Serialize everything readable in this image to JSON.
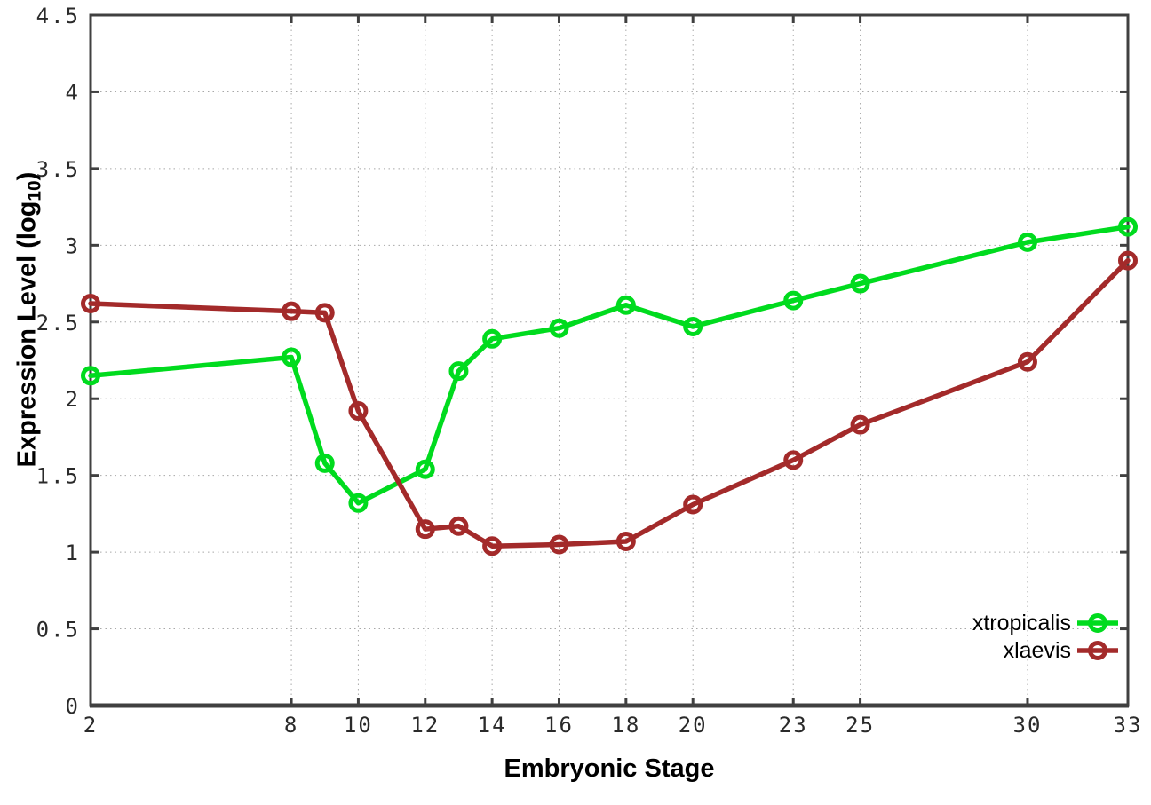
{
  "chart_data": {
    "type": "line",
    "title": "",
    "xlabel": "Embryonic Stage",
    "ylabel": "Expression Level (log10)",
    "ylabel_parts": {
      "pre": "Expression Level (log",
      "sub": "10",
      "post": ")"
    },
    "xlim": [
      2,
      33
    ],
    "ylim": [
      0,
      4.5
    ],
    "x_ticks": [
      2,
      8,
      10,
      12,
      14,
      16,
      18,
      20,
      23,
      25,
      30,
      33
    ],
    "y_ticks": [
      0,
      0.5,
      1,
      1.5,
      2,
      2.5,
      3,
      3.5,
      4,
      4.5
    ],
    "grid": true,
    "legend_position": "inside-bottom-right",
    "marker_shape": "open-circle",
    "x": [
      2,
      8,
      9,
      10,
      12,
      13,
      14,
      16,
      18,
      20,
      23,
      25,
      30,
      33
    ],
    "series": [
      {
        "name": "xtropicalis",
        "color": "#00db1e",
        "values": [
          2.15,
          2.27,
          1.58,
          1.32,
          1.54,
          2.18,
          2.39,
          2.46,
          2.61,
          2.47,
          2.64,
          2.75,
          3.02,
          3.12
        ]
      },
      {
        "name": "xlaevis",
        "color": "#a32a2a",
        "values": [
          2.62,
          2.57,
          2.56,
          1.92,
          1.15,
          1.17,
          1.04,
          1.05,
          1.07,
          1.31,
          1.6,
          1.83,
          2.24,
          2.9
        ]
      }
    ],
    "colors": {
      "background": "#ffffff",
      "axis": "#404040",
      "grid": "#a8a8a8",
      "tick_label": "#2a2a2a",
      "text": "#000000"
    }
  }
}
